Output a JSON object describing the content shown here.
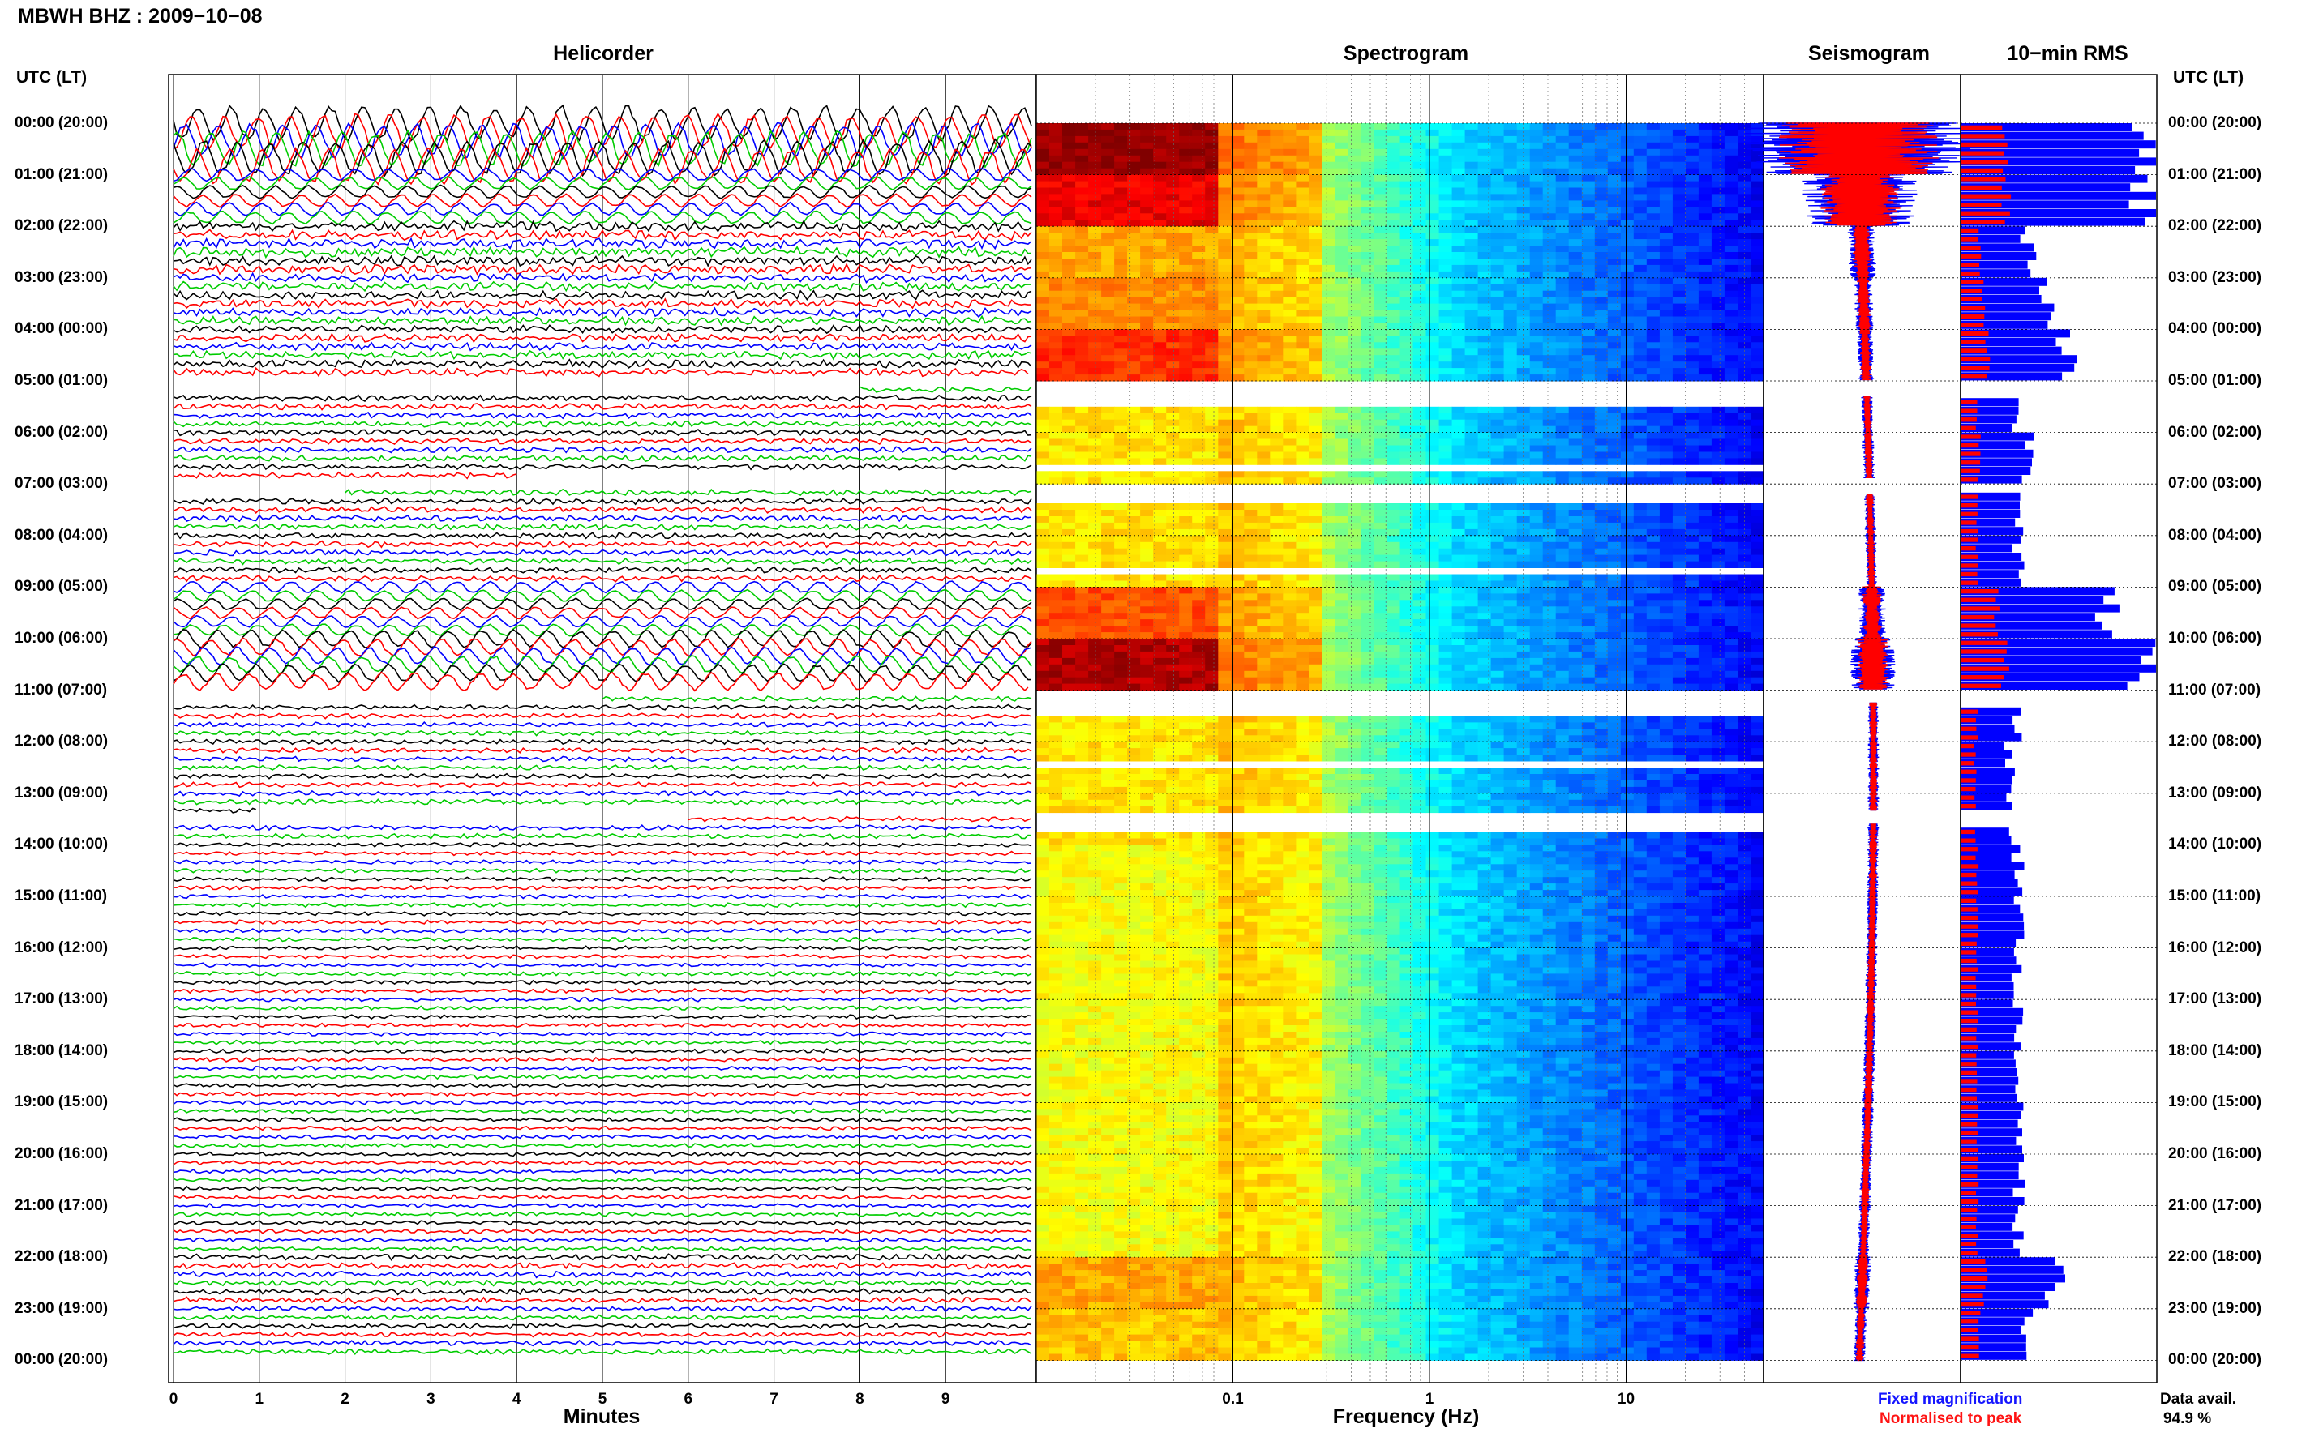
{
  "header": {
    "station": "MBWH BHZ : 2009−10−08"
  },
  "panels": {
    "helicorder_title": "Helicorder",
    "spectrogram_title": "Spectrogram",
    "seismogram_title": "Seismogram",
    "rms_title": "10−min RMS",
    "utc_left": "UTC (LT)",
    "utc_right": "UTC (LT)"
  },
  "colors": {
    "black": "#000000",
    "red": "#ff0000",
    "blue": "#0000ff",
    "green": "#00cc00",
    "fixed": "#1515ff",
    "normalised": "#ff1414"
  },
  "legend": {
    "fixed": "Fixed magnification",
    "normalised": "Normalised to peak",
    "avail_label": "Data avail.",
    "avail_value": "94.9 %"
  },
  "chart_data": [
    {
      "type": "line",
      "title": "Helicorder",
      "xlabel": "Minutes",
      "xlim": [
        0,
        10
      ],
      "xticks": [
        "0",
        "1",
        "2",
        "3",
        "4",
        "5",
        "6",
        "7",
        "8",
        "9"
      ],
      "ylabel": "UTC (LT)",
      "yticks": [
        "00:00 (20:00)",
        "01:00 (21:00)",
        "02:00 (22:00)",
        "03:00 (23:00)",
        "04:00 (00:00)",
        "05:00 (01:00)",
        "06:00 (02:00)",
        "07:00 (03:00)",
        "08:00 (04:00)",
        "09:00 (05:00)",
        "10:00 (06:00)",
        "11:00 (07:00)",
        "12:00 (08:00)",
        "13:00 (09:00)",
        "14:00 (10:00)",
        "15:00 (11:00)",
        "16:00 (12:00)",
        "17:00 (13:00)",
        "18:00 (14:00)",
        "19:00 (15:00)",
        "20:00 (16:00)",
        "21:00 (17:00)",
        "22:00 (18:00)",
        "23:00 (19:00)",
        "00:00 (20:00)"
      ],
      "traces_per_hour": 6,
      "trace_color_cycle": [
        "black",
        "red",
        "blue",
        "green"
      ],
      "relative_amplitude_by_hour": [
        6.0,
        2.2,
        1.0,
        0.9,
        0.8,
        0.6,
        0.6,
        0.6,
        0.6,
        2.0,
        3.0,
        0.5,
        0.5,
        0.5,
        0.4,
        0.4,
        0.4,
        0.4,
        0.4,
        0.4,
        0.4,
        0.4,
        0.6,
        0.5
      ],
      "gaps_hours": [
        [
          5.0,
          5.3
        ],
        [
          6.9,
          7.2
        ],
        [
          11.0,
          11.25
        ],
        [
          13.35,
          13.6
        ]
      ]
    },
    {
      "type": "heatmap",
      "title": "Spectrogram",
      "xlabel": "Frequency (Hz)",
      "xscale": "log",
      "xlim": [
        0.01,
        50
      ],
      "xticks": [
        "0.1",
        "1",
        "10"
      ],
      "relative_power_by_hour": [
        1.0,
        0.85,
        0.55,
        0.6,
        0.75,
        0.45,
        0.45,
        0.45,
        0.45,
        0.7,
        0.95,
        0.45,
        0.45,
        0.45,
        0.4,
        0.4,
        0.4,
        0.4,
        0.4,
        0.4,
        0.4,
        0.4,
        0.55,
        0.5
      ],
      "gaps_hours": [
        [
          5.0,
          5.45
        ],
        [
          6.6,
          6.75
        ],
        [
          6.9,
          7.3
        ],
        [
          8.55,
          8.7
        ],
        [
          11.0,
          11.4
        ],
        [
          12.35,
          12.5
        ],
        [
          13.35,
          13.65
        ]
      ]
    },
    {
      "type": "line",
      "title": "Seismogram",
      "series": [
        {
          "name": "Fixed magnification",
          "color": "blue"
        },
        {
          "name": "Normalised to peak",
          "color": "red"
        }
      ],
      "relative_amplitude_by_hour": [
        1.0,
        0.5,
        0.12,
        0.08,
        0.07,
        0.05,
        0.05,
        0.05,
        0.05,
        0.12,
        0.2,
        0.05,
        0.05,
        0.05,
        0.05,
        0.05,
        0.05,
        0.05,
        0.05,
        0.05,
        0.05,
        0.05,
        0.07,
        0.05
      ]
    },
    {
      "type": "bar",
      "title": "10−min RMS",
      "orientation": "horizontal",
      "series": [
        {
          "name": "Fixed magnification",
          "color": "blue"
        },
        {
          "name": "Normalised to peak",
          "color": "red"
        }
      ],
      "relative_rms_by_hour": [
        1.0,
        1.0,
        0.35,
        0.45,
        0.55,
        0.3,
        0.35,
        0.3,
        0.3,
        0.75,
        1.0,
        0.3,
        0.25,
        0.25,
        0.3,
        0.3,
        0.3,
        0.3,
        0.3,
        0.3,
        0.3,
        0.3,
        0.5,
        0.35
      ],
      "gaps_hours": [
        [
          5.0,
          5.3
        ],
        [
          6.9,
          7.2
        ],
        [
          11.0,
          11.25
        ],
        [
          13.35,
          13.6
        ]
      ]
    }
  ]
}
